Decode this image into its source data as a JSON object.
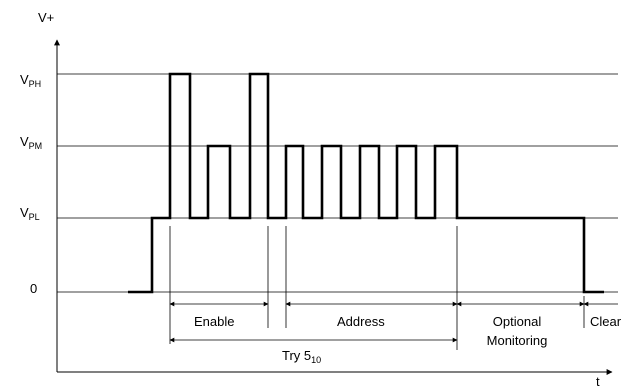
{
  "axes": {
    "y_label": "V+",
    "x_label": "t"
  },
  "levels": {
    "vph": {
      "main": "V",
      "sub": "PH"
    },
    "vpm": {
      "main": "V",
      "sub": "PM"
    },
    "vpl": {
      "main": "V",
      "sub": "PL"
    },
    "zero": "0"
  },
  "phases": {
    "enable": "Enable",
    "address": "Address",
    "optional_line1": "Optional",
    "optional_line2": "Monitoring",
    "clear": "Clear",
    "try_main": "Try 5",
    "try_sub": "10"
  }
}
